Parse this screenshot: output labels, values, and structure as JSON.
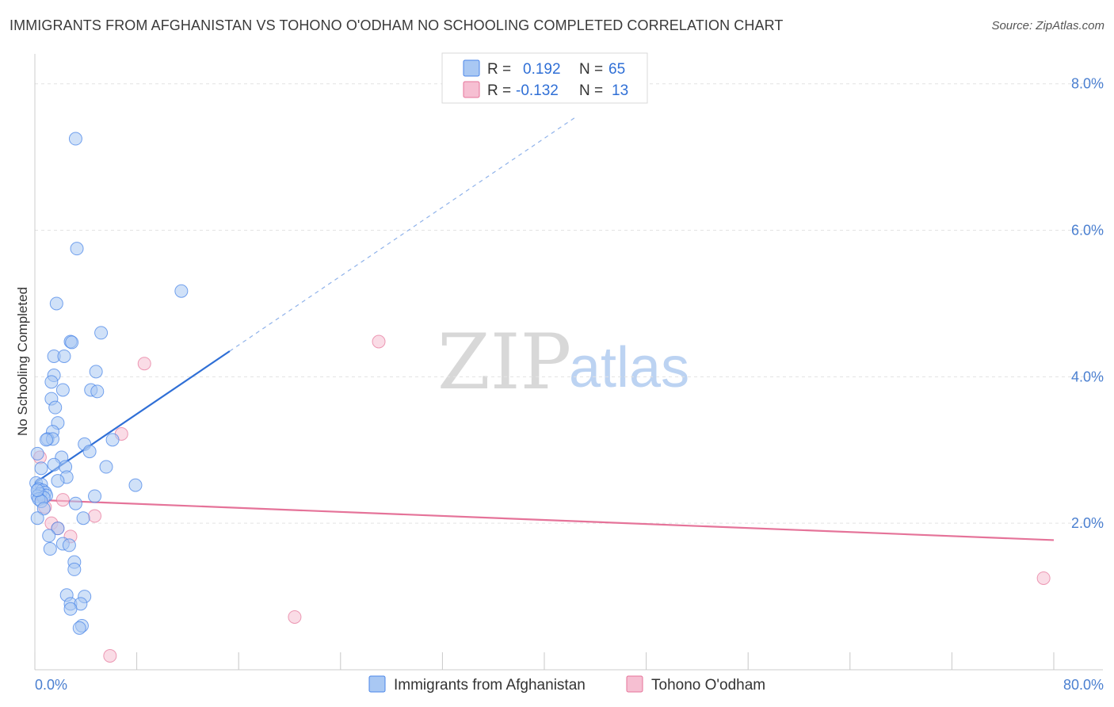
{
  "title": "IMMIGRANTS FROM AFGHANISTAN VS TOHONO O'ODHAM NO SCHOOLING COMPLETED CORRELATION CHART",
  "source": "Source: ZipAtlas.com",
  "legend": {
    "r_label": "R =",
    "n_label": "N =",
    "series1_r": "0.192",
    "series1_n": "65",
    "series2_r": "-0.132",
    "series2_n": "13"
  },
  "watermark": {
    "zip": "ZIP",
    "atlas": "atlas"
  },
  "chart_data": {
    "type": "scatter",
    "title": "IMMIGRANTS FROM AFGHANISTAN VS TOHONO O'ODHAM NO SCHOOLING COMPLETED CORRELATION CHART",
    "xlabel": "",
    "ylabel": "No Schooling Completed",
    "xlim": [
      0,
      80
    ],
    "ylim": [
      0,
      8.3
    ],
    "x_tick_labels": [
      "0.0%",
      "80.0%"
    ],
    "y_ticks": [
      2.0,
      4.0,
      6.0,
      8.0
    ],
    "y_tick_labels": [
      "2.0%",
      "4.0%",
      "6.0%",
      "8.0%"
    ],
    "grid": true,
    "colors": {
      "series1": "#4a86e8",
      "series1_fill": "#a9c8f3",
      "series2": "#e57399",
      "series2_fill": "#f6bfd2"
    },
    "series": [
      {
        "name": "Immigrants from Afghanistan",
        "R": 0.192,
        "N": 65,
        "trendline": {
          "x": [
            0,
            15.3
          ],
          "y": [
            2.55,
            4.35
          ],
          "dashed_extension_to": [
            42.5,
            7.55
          ]
        },
        "points": [
          [
            3.2,
            7.25
          ],
          [
            3.3,
            5.75
          ],
          [
            11.5,
            5.17
          ],
          [
            1.7,
            5.0
          ],
          [
            5.2,
            4.6
          ],
          [
            2.8,
            4.48
          ],
          [
            2.9,
            4.47
          ],
          [
            1.5,
            4.28
          ],
          [
            2.3,
            4.28
          ],
          [
            4.8,
            4.07
          ],
          [
            1.5,
            4.02
          ],
          [
            1.3,
            3.93
          ],
          [
            2.2,
            3.82
          ],
          [
            4.4,
            3.82
          ],
          [
            4.9,
            3.8
          ],
          [
            1.3,
            3.7
          ],
          [
            1.6,
            3.58
          ],
          [
            1.8,
            3.37
          ],
          [
            1.4,
            3.25
          ],
          [
            1.0,
            3.15
          ],
          [
            1.4,
            3.15
          ],
          [
            0.9,
            3.14
          ],
          [
            6.1,
            3.14
          ],
          [
            3.9,
            3.08
          ],
          [
            4.3,
            2.98
          ],
          [
            0.2,
            2.95
          ],
          [
            2.1,
            2.9
          ],
          [
            1.5,
            2.8
          ],
          [
            2.4,
            2.77
          ],
          [
            5.6,
            2.77
          ],
          [
            0.5,
            2.75
          ],
          [
            2.5,
            2.63
          ],
          [
            1.8,
            2.58
          ],
          [
            0.1,
            2.55
          ],
          [
            0.5,
            2.53
          ],
          [
            7.9,
            2.52
          ],
          [
            0.3,
            2.47
          ],
          [
            0.6,
            2.45
          ],
          [
            0.8,
            2.42
          ],
          [
            0.4,
            2.4
          ],
          [
            0.9,
            2.38
          ],
          [
            0.2,
            2.37
          ],
          [
            4.7,
            2.37
          ],
          [
            0.7,
            2.35
          ],
          [
            0.3,
            2.33
          ],
          [
            0.5,
            2.3
          ],
          [
            3.2,
            2.27
          ],
          [
            0.7,
            2.2
          ],
          [
            0.2,
            2.07
          ],
          [
            3.8,
            2.07
          ],
          [
            1.8,
            1.93
          ],
          [
            1.1,
            1.83
          ],
          [
            2.2,
            1.72
          ],
          [
            2.7,
            1.7
          ],
          [
            1.2,
            1.65
          ],
          [
            3.1,
            1.47
          ],
          [
            3.1,
            1.37
          ],
          [
            2.5,
            1.02
          ],
          [
            3.9,
            1.0
          ],
          [
            2.8,
            0.9
          ],
          [
            3.6,
            0.9
          ],
          [
            2.8,
            0.83
          ],
          [
            3.7,
            0.6
          ],
          [
            3.5,
            0.57
          ],
          [
            0.2,
            2.45
          ]
        ]
      },
      {
        "name": "Tohono O'odham",
        "R": -0.132,
        "N": 13,
        "trendline": {
          "x": [
            0,
            80
          ],
          "y": [
            2.32,
            1.77
          ]
        },
        "points": [
          [
            27.0,
            4.48
          ],
          [
            8.6,
            4.18
          ],
          [
            6.8,
            3.22
          ],
          [
            0.4,
            2.9
          ],
          [
            2.2,
            2.32
          ],
          [
            0.8,
            2.22
          ],
          [
            4.7,
            2.1
          ],
          [
            1.3,
            2.0
          ],
          [
            1.8,
            1.93
          ],
          [
            2.8,
            1.82
          ],
          [
            20.4,
            0.72
          ],
          [
            79.2,
            1.25
          ],
          [
            5.9,
            0.19
          ]
        ]
      }
    ]
  }
}
